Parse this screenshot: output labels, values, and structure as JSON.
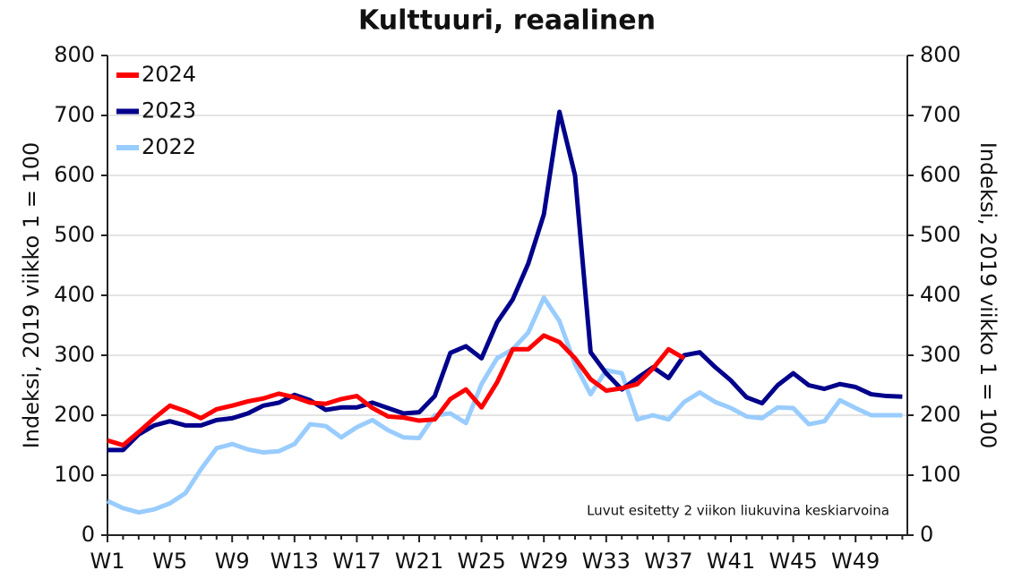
{
  "chart_data": {
    "type": "line",
    "title": "Kulttuuri, reaalinen",
    "ylabel": "Indeksi, 2019 viikko 1 = 100",
    "y2label": "Indeksi, 2019 viikko 1 = 100",
    "annotation": "Luvut esitetty 2 viikon liukuvina keskiarvoina",
    "categories": [
      "W1",
      null,
      null,
      null,
      "W5",
      null,
      null,
      null,
      "W9",
      null,
      null,
      null,
      "W13",
      null,
      null,
      null,
      "W17",
      null,
      null,
      null,
      "W21",
      null,
      null,
      null,
      "W25",
      null,
      null,
      null,
      "W29",
      null,
      null,
      null,
      "W33",
      null,
      null,
      null,
      "W37",
      null,
      null,
      null,
      "W41",
      null,
      null,
      null,
      "W45",
      null,
      null,
      null,
      "W49",
      null,
      null,
      null
    ],
    "series": [
      {
        "name": "2024",
        "color": "#ff0000",
        "values": [
          158,
          150,
          172,
          195,
          216,
          207,
          195,
          210,
          216,
          223,
          228,
          236,
          230,
          221,
          219,
          227,
          232,
          212,
          198,
          196,
          191,
          193,
          227,
          243,
          213,
          255,
          310,
          310,
          333,
          322,
          295,
          260,
          241,
          245,
          252,
          278,
          310,
          295,
          null,
          null,
          null,
          null,
          null,
          null,
          null,
          null,
          null,
          null,
          null,
          null,
          null,
          null
        ]
      },
      {
        "name": "2023",
        "color": "#00008b",
        "values": [
          142,
          142,
          168,
          183,
          190,
          183,
          183,
          192,
          195,
          203,
          216,
          221,
          234,
          225,
          209,
          213,
          213,
          221,
          212,
          203,
          205,
          232,
          304,
          315,
          295,
          355,
          393,
          453,
          535,
          706,
          600,
          305,
          270,
          243,
          262,
          280,
          262,
          300,
          305,
          280,
          258,
          230,
          220,
          250,
          270,
          250,
          244,
          252,
          247,
          235,
          232,
          231
        ]
      },
      {
        "name": "2022",
        "color": "#99ccff",
        "values": [
          57,
          45,
          38,
          43,
          53,
          70,
          110,
          145,
          152,
          143,
          138,
          140,
          152,
          185,
          182,
          163,
          180,
          192,
          175,
          163,
          162,
          200,
          203,
          187,
          252,
          295,
          310,
          338,
          396,
          357,
          285,
          235,
          275,
          270,
          193,
          200,
          193,
          222,
          238,
          222,
          212,
          198,
          195,
          213,
          212,
          185,
          190,
          225,
          212,
          200,
          200,
          200
        ]
      }
    ],
    "ylim": [
      0,
      800
    ],
    "yticks": [
      0,
      100,
      200,
      300,
      400,
      500,
      600,
      700,
      800
    ],
    "y2lim": [
      0,
      800
    ],
    "y2ticks": [
      0,
      100,
      200,
      300,
      400,
      500,
      600,
      700,
      800
    ],
    "grid": true,
    "legend": "upper-left"
  }
}
